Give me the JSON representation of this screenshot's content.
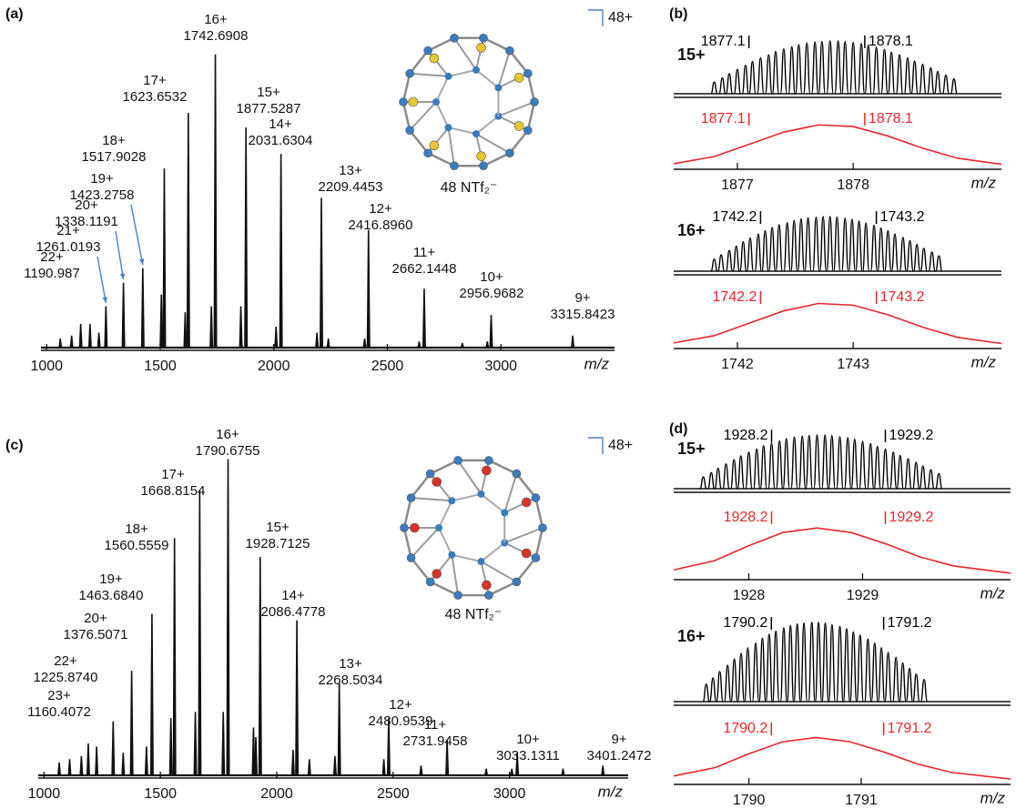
{
  "chart_data": [
    {
      "type": "spectrum",
      "panel": "(a)",
      "xlim": [
        975,
        3500
      ],
      "xticks": [
        1000,
        1500,
        2000,
        2500,
        3000
      ],
      "xlabel": "m/z",
      "ylim": [
        0,
        100
      ],
      "cage_charge": "48+",
      "counterion": "48 NTf₂⁻",
      "cage_color": "#e8c830",
      "series": [
        {
          "color": "#111111",
          "x": [
            1190.987,
            1261.0193,
            1338.1191,
            1423.2758,
            1517.9028,
            1623.6532,
            1742.6908,
            1877.5287,
            2031.6304,
            2209.4453,
            2416.896,
            2662.1448,
            2956.9682,
            3315.8423
          ],
          "values": [
            8,
            14,
            22,
            27,
            61,
            80,
            100,
            75,
            66,
            51,
            40,
            20,
            11,
            4
          ],
          "charges": [
            "22+",
            "21+",
            "20+",
            "19+",
            "18+",
            "17+",
            "16+",
            "15+",
            "14+",
            "13+",
            "12+",
            "11+",
            "10+",
            "9+"
          ],
          "mass_labels": [
            "1190.987",
            "1261.0193",
            "1338.1191",
            "1423.2758",
            "1517.9028",
            "1623.6532",
            "1742.6908",
            "1877.5287",
            "2031.6304",
            "2209.4453",
            "2416.8960",
            "2662.1448",
            "2956.9682",
            "3315.8423"
          ]
        },
        {
          "color": "#111111",
          "x": [
            1060,
            1110,
            1150,
            1230,
            1505,
            1610,
            1725,
            1855,
            2010,
            2190,
            2240,
            2400,
            2640,
            2830,
            2940
          ],
          "values": [
            3,
            4,
            8,
            5,
            18,
            12,
            14,
            14,
            7,
            5,
            3,
            3,
            2,
            1.5,
            2
          ]
        }
      ]
    },
    {
      "type": "isotope",
      "panel": "(b)",
      "charge": "15+",
      "xlim": [
        1876.45,
        1879.28
      ],
      "xticks": [
        1877,
        1878
      ],
      "xlabel": "m/z",
      "ylim": [
        0,
        100
      ],
      "series": [
        {
          "color": "#000000",
          "style": "sticks",
          "x": [
            1876.8,
            1876.87,
            1876.93,
            1877.0,
            1877.07,
            1877.13,
            1877.2,
            1877.27,
            1877.33,
            1877.4,
            1877.47,
            1877.53,
            1877.6,
            1877.67,
            1877.73,
            1877.8,
            1877.87,
            1877.93,
            1878.0,
            1878.07,
            1878.13,
            1878.2,
            1878.27,
            1878.33,
            1878.4,
            1878.47,
            1878.53,
            1878.6,
            1878.67,
            1878.73,
            1878.8,
            1878.87
          ],
          "values": [
            22,
            30,
            38,
            46,
            54,
            61,
            68,
            74,
            80,
            85,
            89,
            93,
            96,
            98,
            99,
            100,
            100,
            99,
            97,
            95,
            92,
            88,
            84,
            79,
            74,
            68,
            62,
            56,
            49,
            42,
            35,
            28
          ],
          "markers": [
            1877.1,
            1878.1
          ]
        },
        {
          "color": "#e8262a",
          "style": "line",
          "x": [
            1876.45,
            1876.8,
            1877.1,
            1877.4,
            1877.7,
            1878.0,
            1878.3,
            1878.6,
            1878.9,
            1879.28
          ],
          "values": [
            5,
            18,
            40,
            62,
            75,
            72,
            55,
            33,
            15,
            4
          ],
          "markers": [
            1877.1,
            1878.1
          ]
        }
      ]
    },
    {
      "type": "isotope",
      "charge": "16+",
      "xlim": [
        1741.45,
        1744.28
      ],
      "xticks": [
        1742,
        1743
      ],
      "xlabel": "m/z",
      "ylim": [
        0,
        100
      ],
      "series": [
        {
          "color": "#000000",
          "style": "sticks",
          "x": [
            1741.8,
            1741.86,
            1741.93,
            1741.99,
            1742.05,
            1742.11,
            1742.18,
            1742.24,
            1742.3,
            1742.36,
            1742.43,
            1742.49,
            1742.55,
            1742.61,
            1742.68,
            1742.74,
            1742.8,
            1742.86,
            1742.93,
            1742.99,
            1743.05,
            1743.11,
            1743.18,
            1743.24,
            1743.3,
            1743.36,
            1743.43,
            1743.49,
            1743.55,
            1743.61,
            1743.68,
            1743.74
          ],
          "values": [
            22,
            30,
            38,
            46,
            54,
            61,
            68,
            74,
            80,
            85,
            89,
            93,
            96,
            98,
            99,
            100,
            100,
            99,
            97,
            95,
            92,
            88,
            84,
            79,
            74,
            68,
            62,
            56,
            49,
            42,
            35,
            28
          ],
          "markers": [
            1742.2,
            1743.2
          ]
        },
        {
          "color": "#e8262a",
          "style": "line",
          "x": [
            1741.45,
            1741.8,
            1742.1,
            1742.4,
            1742.7,
            1743.0,
            1743.3,
            1743.6,
            1743.9,
            1744.28
          ],
          "values": [
            5,
            18,
            40,
            62,
            75,
            72,
            55,
            33,
            15,
            4
          ],
          "markers": [
            1742.2,
            1743.2
          ]
        }
      ]
    },
    {
      "type": "spectrum",
      "panel": "(c)",
      "xlim": [
        975,
        3510
      ],
      "xticks": [
        1000,
        1500,
        2000,
        2500,
        3000
      ],
      "xlabel": "m/z",
      "ylim": [
        0,
        100
      ],
      "cage_charge": "48+",
      "counterion": "48 NTf₂⁻",
      "cage_color": "#d8322a",
      "series": [
        {
          "color": "#111111",
          "x": [
            1160.4072,
            1225.874,
            1376.5071,
            1463.684,
            1560.5559,
            1668.8154,
            1790.6755,
            1928.7125,
            2086.4778,
            2268.5034,
            2480.9539,
            2731.9458,
            3033.1311,
            3401.2472
          ],
          "values": [
            6,
            9,
            33,
            51,
            75,
            90,
            100,
            69,
            49,
            29,
            18,
            11,
            7,
            3
          ],
          "charges": [
            "23+",
            "22+",
            "20+",
            "19+",
            "18+",
            "17+",
            "16+",
            "15+",
            "14+",
            "13+",
            "12+",
            "11+",
            "10+",
            "9+"
          ],
          "mass_labels": [
            "1160.4072",
            "1225.8740",
            "1376.5071",
            "1463.6840",
            "1560.5559",
            "1668.8154",
            "1790.6755",
            "1928.7125",
            "2086.4778",
            "2268.5034",
            "2480.9539",
            "2731.9458",
            "3033.1311",
            "3401.2472"
          ]
        },
        {
          "color": "#111111",
          "x": [
            1065,
            1110,
            1190,
            1297,
            1340,
            1440,
            1545,
            1650,
            1770,
            1900,
            1910,
            2070,
            2140,
            2250,
            2460,
            2620,
            2900,
            3010,
            3230
          ],
          "values": [
            4,
            5,
            10,
            17,
            7,
            9,
            18,
            20,
            20,
            15,
            12,
            8,
            5,
            6,
            5,
            3,
            2,
            2,
            2
          ]
        }
      ]
    },
    {
      "type": "isotope",
      "panel": "(d)",
      "charge": "15+",
      "xlim": [
        1927.34,
        1930.3
      ],
      "xticks": [
        1928,
        1929
      ],
      "xlabel": "m/z",
      "ylim": [
        0,
        100
      ],
      "series": [
        {
          "color": "#000000",
          "style": "sticks",
          "x": [
            1927.6,
            1927.67,
            1927.73,
            1927.8,
            1927.87,
            1927.93,
            1928.0,
            1928.07,
            1928.13,
            1928.2,
            1928.27,
            1928.33,
            1928.4,
            1928.47,
            1928.53,
            1928.6,
            1928.67,
            1928.73,
            1928.8,
            1928.87,
            1928.93,
            1929.0,
            1929.07,
            1929.13,
            1929.2,
            1929.27,
            1929.33,
            1929.4,
            1929.47,
            1929.53,
            1929.6,
            1929.67
          ],
          "values": [
            22,
            30,
            38,
            46,
            54,
            61,
            68,
            74,
            80,
            85,
            89,
            93,
            96,
            98,
            99,
            100,
            100,
            99,
            97,
            95,
            92,
            88,
            84,
            79,
            74,
            68,
            62,
            56,
            49,
            42,
            35,
            28
          ],
          "markers": [
            1928.2,
            1929.2
          ]
        },
        {
          "color": "#e8262a",
          "style": "line",
          "x": [
            1927.34,
            1927.7,
            1928.0,
            1928.3,
            1928.6,
            1928.9,
            1929.2,
            1929.5,
            1929.8,
            1930.3
          ],
          "values": [
            8,
            22,
            45,
            65,
            72,
            65,
            48,
            28,
            14,
            3
          ],
          "markers": [
            1928.2,
            1929.2
          ]
        }
      ]
    },
    {
      "type": "isotope",
      "charge": "16+",
      "xlim": [
        1789.33,
        1792.33
      ],
      "xticks": [
        1790,
        1791
      ],
      "xlabel": "m/z",
      "ylim": [
        0,
        100
      ],
      "series": [
        {
          "color": "#000000",
          "style": "sticks",
          "x": [
            1789.62,
            1789.68,
            1789.74,
            1789.81,
            1789.87,
            1789.93,
            1789.99,
            1790.06,
            1790.12,
            1790.18,
            1790.24,
            1790.31,
            1790.37,
            1790.43,
            1790.49,
            1790.56,
            1790.62,
            1790.68,
            1790.74,
            1790.81,
            1790.87,
            1790.93,
            1790.99,
            1791.06,
            1791.12,
            1791.18,
            1791.24,
            1791.31,
            1791.37,
            1791.43,
            1791.49,
            1791.56
          ],
          "values": [
            22,
            30,
            38,
            46,
            54,
            61,
            68,
            74,
            80,
            85,
            89,
            93,
            96,
            98,
            99,
            100,
            100,
            99,
            97,
            95,
            92,
            88,
            84,
            79,
            74,
            68,
            62,
            56,
            49,
            42,
            35,
            28
          ],
          "markers": [
            1790.2,
            1791.2
          ]
        },
        {
          "color": "#e8262a",
          "style": "line",
          "x": [
            1789.33,
            1789.7,
            1790.0,
            1790.3,
            1790.6,
            1790.9,
            1791.2,
            1791.5,
            1791.8,
            1792.33
          ],
          "values": [
            8,
            22,
            45,
            65,
            72,
            65,
            48,
            28,
            14,
            3
          ],
          "markers": [
            1790.2,
            1791.2
          ]
        }
      ]
    }
  ]
}
